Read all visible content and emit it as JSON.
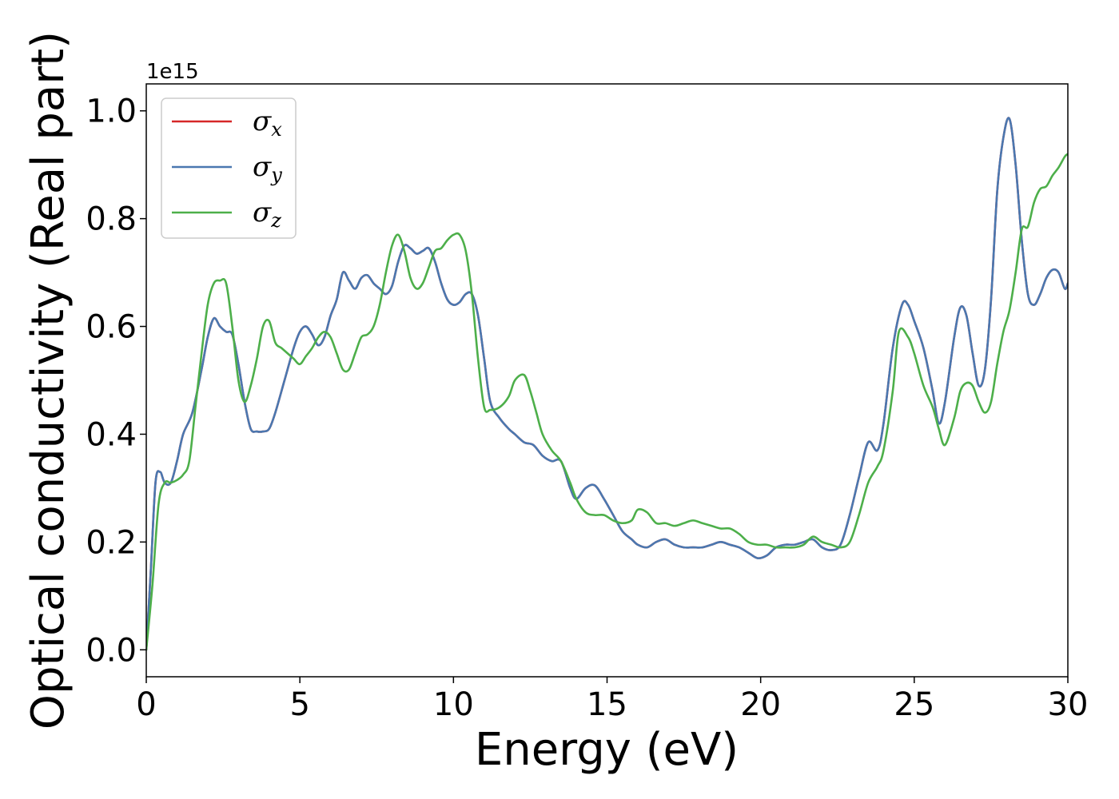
{
  "chart_data": {
    "type": "line",
    "xlabel": "Energy (eV)",
    "ylabel": "Optical conductivity (Real part)",
    "y_offset_label": "1e15",
    "xlim": [
      0,
      30
    ],
    "ylim": [
      -0.05,
      1.05
    ],
    "xticks": [
      0,
      5,
      10,
      15,
      20,
      25,
      30
    ],
    "xtick_labels": [
      "0",
      "5",
      "10",
      "15",
      "20",
      "25",
      "30"
    ],
    "yticks": [
      0.0,
      0.2,
      0.4,
      0.6,
      0.8,
      1.0
    ],
    "ytick_labels": [
      "0.0",
      "0.2",
      "0.4",
      "0.6",
      "0.8",
      "1.0"
    ],
    "grid": false,
    "legend_position": "upper-left",
    "series": [
      {
        "name": "σx",
        "symbol": "σ",
        "subscript": "x",
        "color": "#d62728",
        "x": [
          0,
          0.15,
          0.3,
          0.45,
          0.6,
          0.8,
          1.0,
          1.2,
          1.5,
          1.8,
          2.0,
          2.2,
          2.4,
          2.6,
          2.8,
          3.0,
          3.2,
          3.4,
          3.6,
          3.8,
          4.0,
          4.2,
          4.5,
          4.8,
          5.0,
          5.2,
          5.4,
          5.6,
          5.8,
          6.0,
          6.2,
          6.4,
          6.6,
          6.8,
          7.0,
          7.2,
          7.4,
          7.6,
          7.8,
          8.0,
          8.2,
          8.4,
          8.6,
          8.8,
          9.0,
          9.2,
          9.4,
          9.6,
          9.8,
          10.0,
          10.2,
          10.4,
          10.6,
          10.8,
          11.0,
          11.2,
          11.5,
          11.8,
          12.0,
          12.3,
          12.6,
          12.9,
          13.2,
          13.5,
          13.8,
          14.0,
          14.3,
          14.6,
          14.9,
          15.2,
          15.5,
          15.8,
          16.0,
          16.3,
          16.6,
          16.9,
          17.2,
          17.5,
          17.8,
          18.1,
          18.4,
          18.7,
          19.0,
          19.3,
          19.6,
          19.9,
          20.2,
          20.5,
          20.8,
          21.1,
          21.4,
          21.7,
          22.0,
          22.3,
          22.6,
          22.9,
          23.2,
          23.5,
          23.8,
          24.0,
          24.3,
          24.6,
          24.8,
          25.0,
          25.3,
          25.6,
          25.8,
          26.0,
          26.3,
          26.5,
          26.7,
          26.9,
          27.1,
          27.3,
          27.5,
          27.7,
          27.9,
          28.1,
          28.3,
          28.5,
          28.7,
          28.9,
          29.1,
          29.3,
          29.5,
          29.7,
          29.9,
          30.0
        ],
        "y": [
          0.0,
          0.15,
          0.31,
          0.33,
          0.31,
          0.31,
          0.35,
          0.4,
          0.44,
          0.52,
          0.58,
          0.615,
          0.6,
          0.59,
          0.585,
          0.53,
          0.46,
          0.41,
          0.405,
          0.405,
          0.41,
          0.44,
          0.5,
          0.56,
          0.59,
          0.6,
          0.585,
          0.565,
          0.58,
          0.62,
          0.65,
          0.7,
          0.685,
          0.67,
          0.69,
          0.695,
          0.68,
          0.67,
          0.66,
          0.675,
          0.72,
          0.75,
          0.745,
          0.735,
          0.74,
          0.745,
          0.72,
          0.68,
          0.65,
          0.64,
          0.645,
          0.66,
          0.66,
          0.62,
          0.54,
          0.46,
          0.43,
          0.41,
          0.4,
          0.385,
          0.38,
          0.36,
          0.35,
          0.35,
          0.3,
          0.28,
          0.3,
          0.305,
          0.28,
          0.25,
          0.22,
          0.205,
          0.195,
          0.19,
          0.2,
          0.205,
          0.195,
          0.19,
          0.19,
          0.19,
          0.195,
          0.2,
          0.195,
          0.19,
          0.18,
          0.17,
          0.175,
          0.19,
          0.195,
          0.195,
          0.2,
          0.205,
          0.19,
          0.185,
          0.195,
          0.25,
          0.32,
          0.385,
          0.37,
          0.42,
          0.56,
          0.64,
          0.64,
          0.61,
          0.56,
          0.48,
          0.42,
          0.46,
          0.58,
          0.635,
          0.62,
          0.55,
          0.49,
          0.52,
          0.65,
          0.85,
          0.95,
          0.985,
          0.9,
          0.76,
          0.66,
          0.64,
          0.66,
          0.69,
          0.705,
          0.7,
          0.67,
          0.68
        ]
      },
      {
        "name": "σy",
        "symbol": "σ",
        "subscript": "y",
        "color": "#4a78b0",
        "x": [
          0,
          0.15,
          0.3,
          0.45,
          0.6,
          0.8,
          1.0,
          1.2,
          1.5,
          1.8,
          2.0,
          2.2,
          2.4,
          2.6,
          2.8,
          3.0,
          3.2,
          3.4,
          3.6,
          3.8,
          4.0,
          4.2,
          4.5,
          4.8,
          5.0,
          5.2,
          5.4,
          5.6,
          5.8,
          6.0,
          6.2,
          6.4,
          6.6,
          6.8,
          7.0,
          7.2,
          7.4,
          7.6,
          7.8,
          8.0,
          8.2,
          8.4,
          8.6,
          8.8,
          9.0,
          9.2,
          9.4,
          9.6,
          9.8,
          10.0,
          10.2,
          10.4,
          10.6,
          10.8,
          11.0,
          11.2,
          11.5,
          11.8,
          12.0,
          12.3,
          12.6,
          12.9,
          13.2,
          13.5,
          13.8,
          14.0,
          14.3,
          14.6,
          14.9,
          15.2,
          15.5,
          15.8,
          16.0,
          16.3,
          16.6,
          16.9,
          17.2,
          17.5,
          17.8,
          18.1,
          18.4,
          18.7,
          19.0,
          19.3,
          19.6,
          19.9,
          20.2,
          20.5,
          20.8,
          21.1,
          21.4,
          21.7,
          22.0,
          22.3,
          22.6,
          22.9,
          23.2,
          23.5,
          23.8,
          24.0,
          24.3,
          24.6,
          24.8,
          25.0,
          25.3,
          25.6,
          25.8,
          26.0,
          26.3,
          26.5,
          26.7,
          26.9,
          27.1,
          27.3,
          27.5,
          27.7,
          27.9,
          28.1,
          28.3,
          28.5,
          28.7,
          28.9,
          29.1,
          29.3,
          29.5,
          29.7,
          29.9,
          30.0
        ],
        "y": [
          0.0,
          0.15,
          0.31,
          0.33,
          0.31,
          0.31,
          0.35,
          0.4,
          0.44,
          0.52,
          0.58,
          0.615,
          0.6,
          0.59,
          0.585,
          0.53,
          0.46,
          0.41,
          0.405,
          0.405,
          0.41,
          0.44,
          0.5,
          0.56,
          0.59,
          0.6,
          0.585,
          0.565,
          0.58,
          0.62,
          0.65,
          0.7,
          0.685,
          0.67,
          0.69,
          0.695,
          0.68,
          0.67,
          0.66,
          0.675,
          0.72,
          0.75,
          0.745,
          0.735,
          0.74,
          0.745,
          0.72,
          0.68,
          0.65,
          0.64,
          0.645,
          0.66,
          0.66,
          0.62,
          0.54,
          0.46,
          0.43,
          0.41,
          0.4,
          0.385,
          0.38,
          0.36,
          0.35,
          0.35,
          0.3,
          0.28,
          0.3,
          0.305,
          0.28,
          0.25,
          0.22,
          0.205,
          0.195,
          0.19,
          0.2,
          0.205,
          0.195,
          0.19,
          0.19,
          0.19,
          0.195,
          0.2,
          0.195,
          0.19,
          0.18,
          0.17,
          0.175,
          0.19,
          0.195,
          0.195,
          0.2,
          0.205,
          0.19,
          0.185,
          0.195,
          0.25,
          0.32,
          0.385,
          0.37,
          0.42,
          0.56,
          0.64,
          0.64,
          0.61,
          0.56,
          0.48,
          0.42,
          0.46,
          0.58,
          0.635,
          0.62,
          0.55,
          0.49,
          0.52,
          0.65,
          0.85,
          0.95,
          0.985,
          0.9,
          0.76,
          0.66,
          0.64,
          0.66,
          0.69,
          0.705,
          0.7,
          0.67,
          0.68
        ]
      },
      {
        "name": "σz",
        "symbol": "σ",
        "subscript": "z",
        "color": "#4daf4a",
        "x": [
          0,
          0.2,
          0.4,
          0.6,
          0.8,
          1.0,
          1.2,
          1.4,
          1.6,
          1.8,
          2.0,
          2.2,
          2.4,
          2.6,
          2.8,
          3.0,
          3.2,
          3.4,
          3.6,
          3.8,
          4.0,
          4.2,
          4.4,
          4.6,
          4.8,
          5.0,
          5.2,
          5.4,
          5.6,
          5.8,
          6.0,
          6.2,
          6.4,
          6.6,
          6.8,
          7.0,
          7.2,
          7.4,
          7.6,
          7.8,
          8.0,
          8.2,
          8.4,
          8.6,
          8.8,
          9.0,
          9.2,
          9.4,
          9.6,
          9.8,
          10.0,
          10.2,
          10.4,
          10.6,
          10.8,
          11.0,
          11.2,
          11.5,
          11.8,
          12.0,
          12.3,
          12.5,
          12.7,
          12.9,
          13.2,
          13.5,
          13.8,
          14.0,
          14.3,
          14.6,
          14.9,
          15.2,
          15.5,
          15.8,
          16.0,
          16.3,
          16.6,
          16.9,
          17.2,
          17.5,
          17.8,
          18.1,
          18.4,
          18.7,
          19.0,
          19.3,
          19.6,
          19.9,
          20.2,
          20.5,
          20.8,
          21.1,
          21.4,
          21.7,
          22.0,
          22.3,
          22.6,
          22.9,
          23.2,
          23.5,
          23.8,
          24.0,
          24.3,
          24.5,
          24.8,
          25.0,
          25.3,
          25.6,
          25.8,
          26.0,
          26.3,
          26.5,
          26.7,
          26.9,
          27.1,
          27.3,
          27.5,
          27.7,
          27.9,
          28.1,
          28.3,
          28.5,
          28.7,
          28.9,
          29.1,
          29.3,
          29.5,
          29.7,
          29.9,
          30.0
        ],
        "y": [
          0.0,
          0.12,
          0.27,
          0.31,
          0.31,
          0.315,
          0.325,
          0.35,
          0.45,
          0.55,
          0.64,
          0.68,
          0.685,
          0.68,
          0.6,
          0.5,
          0.46,
          0.49,
          0.54,
          0.6,
          0.61,
          0.57,
          0.56,
          0.55,
          0.54,
          0.53,
          0.545,
          0.56,
          0.58,
          0.59,
          0.58,
          0.55,
          0.52,
          0.52,
          0.55,
          0.58,
          0.585,
          0.6,
          0.64,
          0.7,
          0.75,
          0.77,
          0.74,
          0.69,
          0.67,
          0.68,
          0.71,
          0.74,
          0.745,
          0.76,
          0.77,
          0.77,
          0.74,
          0.66,
          0.54,
          0.45,
          0.445,
          0.45,
          0.47,
          0.5,
          0.51,
          0.48,
          0.44,
          0.4,
          0.37,
          0.35,
          0.31,
          0.28,
          0.255,
          0.25,
          0.25,
          0.24,
          0.235,
          0.24,
          0.26,
          0.255,
          0.235,
          0.235,
          0.23,
          0.235,
          0.24,
          0.235,
          0.23,
          0.225,
          0.225,
          0.215,
          0.2,
          0.195,
          0.195,
          0.19,
          0.19,
          0.19,
          0.195,
          0.21,
          0.2,
          0.195,
          0.19,
          0.2,
          0.25,
          0.31,
          0.34,
          0.37,
          0.48,
          0.59,
          0.58,
          0.55,
          0.49,
          0.45,
          0.41,
          0.38,
          0.43,
          0.48,
          0.495,
          0.49,
          0.46,
          0.44,
          0.46,
          0.53,
          0.59,
          0.63,
          0.7,
          0.78,
          0.785,
          0.83,
          0.855,
          0.86,
          0.88,
          0.895,
          0.915,
          0.92
        ]
      }
    ]
  }
}
